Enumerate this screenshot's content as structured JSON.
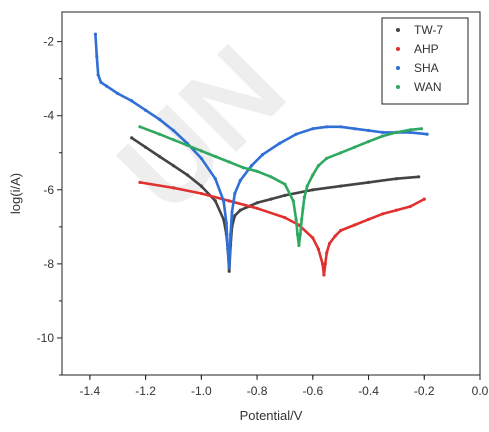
{
  "chart_data": {
    "type": "scatter",
    "title": "",
    "xlabel": "Potential/V",
    "ylabel": "log(i/A)",
    "xlim": [
      -1.5,
      0.0
    ],
    "ylim": [
      -11,
      -1.2
    ],
    "x_ticks": [
      -1.4,
      -1.2,
      -1.0,
      -0.8,
      -0.6,
      -0.4,
      -0.2,
      0.0
    ],
    "x_tick_labels": [
      "-1.4",
      "-1.2",
      "-1.0",
      "-0.8",
      "-0.6",
      "-0.4",
      "-0.2",
      "0.0"
    ],
    "y_ticks": [
      -2,
      -4,
      -6,
      -8,
      -10
    ],
    "y_tick_labels": [
      "-2",
      "-4",
      "-6",
      "-8",
      "-10"
    ],
    "legend_position": "top-right",
    "grid": false,
    "series": [
      {
        "name": "TW-7",
        "color": "#444444",
        "x": [
          -1.25,
          -1.2,
          -1.15,
          -1.1,
          -1.05,
          -1.0,
          -0.95,
          -0.92,
          -0.91,
          -0.905,
          -0.9,
          -0.895,
          -0.89,
          -0.88,
          -0.86,
          -0.83,
          -0.8,
          -0.75,
          -0.7,
          -0.6,
          -0.5,
          -0.4,
          -0.3,
          -0.22
        ],
        "y": [
          -4.6,
          -4.85,
          -5.1,
          -5.35,
          -5.6,
          -5.9,
          -6.3,
          -6.8,
          -7.2,
          -7.6,
          -8.2,
          -7.5,
          -7.0,
          -6.7,
          -6.55,
          -6.45,
          -6.35,
          -6.25,
          -6.15,
          -6.0,
          -5.9,
          -5.8,
          -5.7,
          -5.65
        ]
      },
      {
        "name": "AHP",
        "color": "#e03030",
        "x": [
          -1.22,
          -1.1,
          -1.0,
          -0.9,
          -0.8,
          -0.7,
          -0.65,
          -0.6,
          -0.58,
          -0.565,
          -0.56,
          -0.555,
          -0.55,
          -0.54,
          -0.52,
          -0.5,
          -0.45,
          -0.4,
          -0.35,
          -0.3,
          -0.25,
          -0.2
        ],
        "y": [
          -5.8,
          -5.95,
          -6.1,
          -6.3,
          -6.5,
          -6.75,
          -6.95,
          -7.3,
          -7.6,
          -8.0,
          -8.3,
          -8.0,
          -7.7,
          -7.45,
          -7.25,
          -7.1,
          -6.95,
          -6.8,
          -6.65,
          -6.55,
          -6.45,
          -6.25
        ]
      },
      {
        "name": "SHA",
        "color": "#2f6fd6",
        "x": [
          -1.38,
          -1.375,
          -1.37,
          -1.36,
          -1.34,
          -1.3,
          -1.25,
          -1.2,
          -1.15,
          -1.1,
          -1.05,
          -1.0,
          -0.95,
          -0.92,
          -0.91,
          -0.905,
          -0.9,
          -0.895,
          -0.89,
          -0.88,
          -0.86,
          -0.82,
          -0.78,
          -0.72,
          -0.66,
          -0.6,
          -0.55,
          -0.5,
          -0.45,
          -0.4,
          -0.35,
          -0.3,
          -0.25,
          -0.19
        ],
        "y": [
          -1.8,
          -2.4,
          -2.9,
          -3.1,
          -3.2,
          -3.4,
          -3.6,
          -3.85,
          -4.1,
          -4.4,
          -4.75,
          -5.15,
          -5.7,
          -6.3,
          -6.9,
          -7.6,
          -8.1,
          -7.2,
          -6.6,
          -6.1,
          -5.75,
          -5.35,
          -5.05,
          -4.75,
          -4.5,
          -4.35,
          -4.3,
          -4.3,
          -4.35,
          -4.4,
          -4.45,
          -4.45,
          -4.45,
          -4.5
        ]
      },
      {
        "name": "WAN",
        "color": "#2fa860",
        "x": [
          -1.22,
          -1.15,
          -1.1,
          -1.05,
          -1.0,
          -0.95,
          -0.9,
          -0.85,
          -0.8,
          -0.75,
          -0.7,
          -0.67,
          -0.66,
          -0.655,
          -0.65,
          -0.645,
          -0.64,
          -0.635,
          -0.63,
          -0.62,
          -0.6,
          -0.58,
          -0.55,
          -0.5,
          -0.45,
          -0.4,
          -0.35,
          -0.3,
          -0.25,
          -0.21
        ],
        "y": [
          -4.3,
          -4.5,
          -4.65,
          -4.8,
          -4.95,
          -5.1,
          -5.25,
          -5.4,
          -5.5,
          -5.65,
          -5.85,
          -6.3,
          -6.8,
          -7.2,
          -7.5,
          -7.2,
          -6.8,
          -6.5,
          -6.2,
          -5.9,
          -5.6,
          -5.35,
          -5.15,
          -5.0,
          -4.85,
          -4.7,
          -4.55,
          -4.45,
          -4.38,
          -4.35
        ]
      }
    ]
  }
}
